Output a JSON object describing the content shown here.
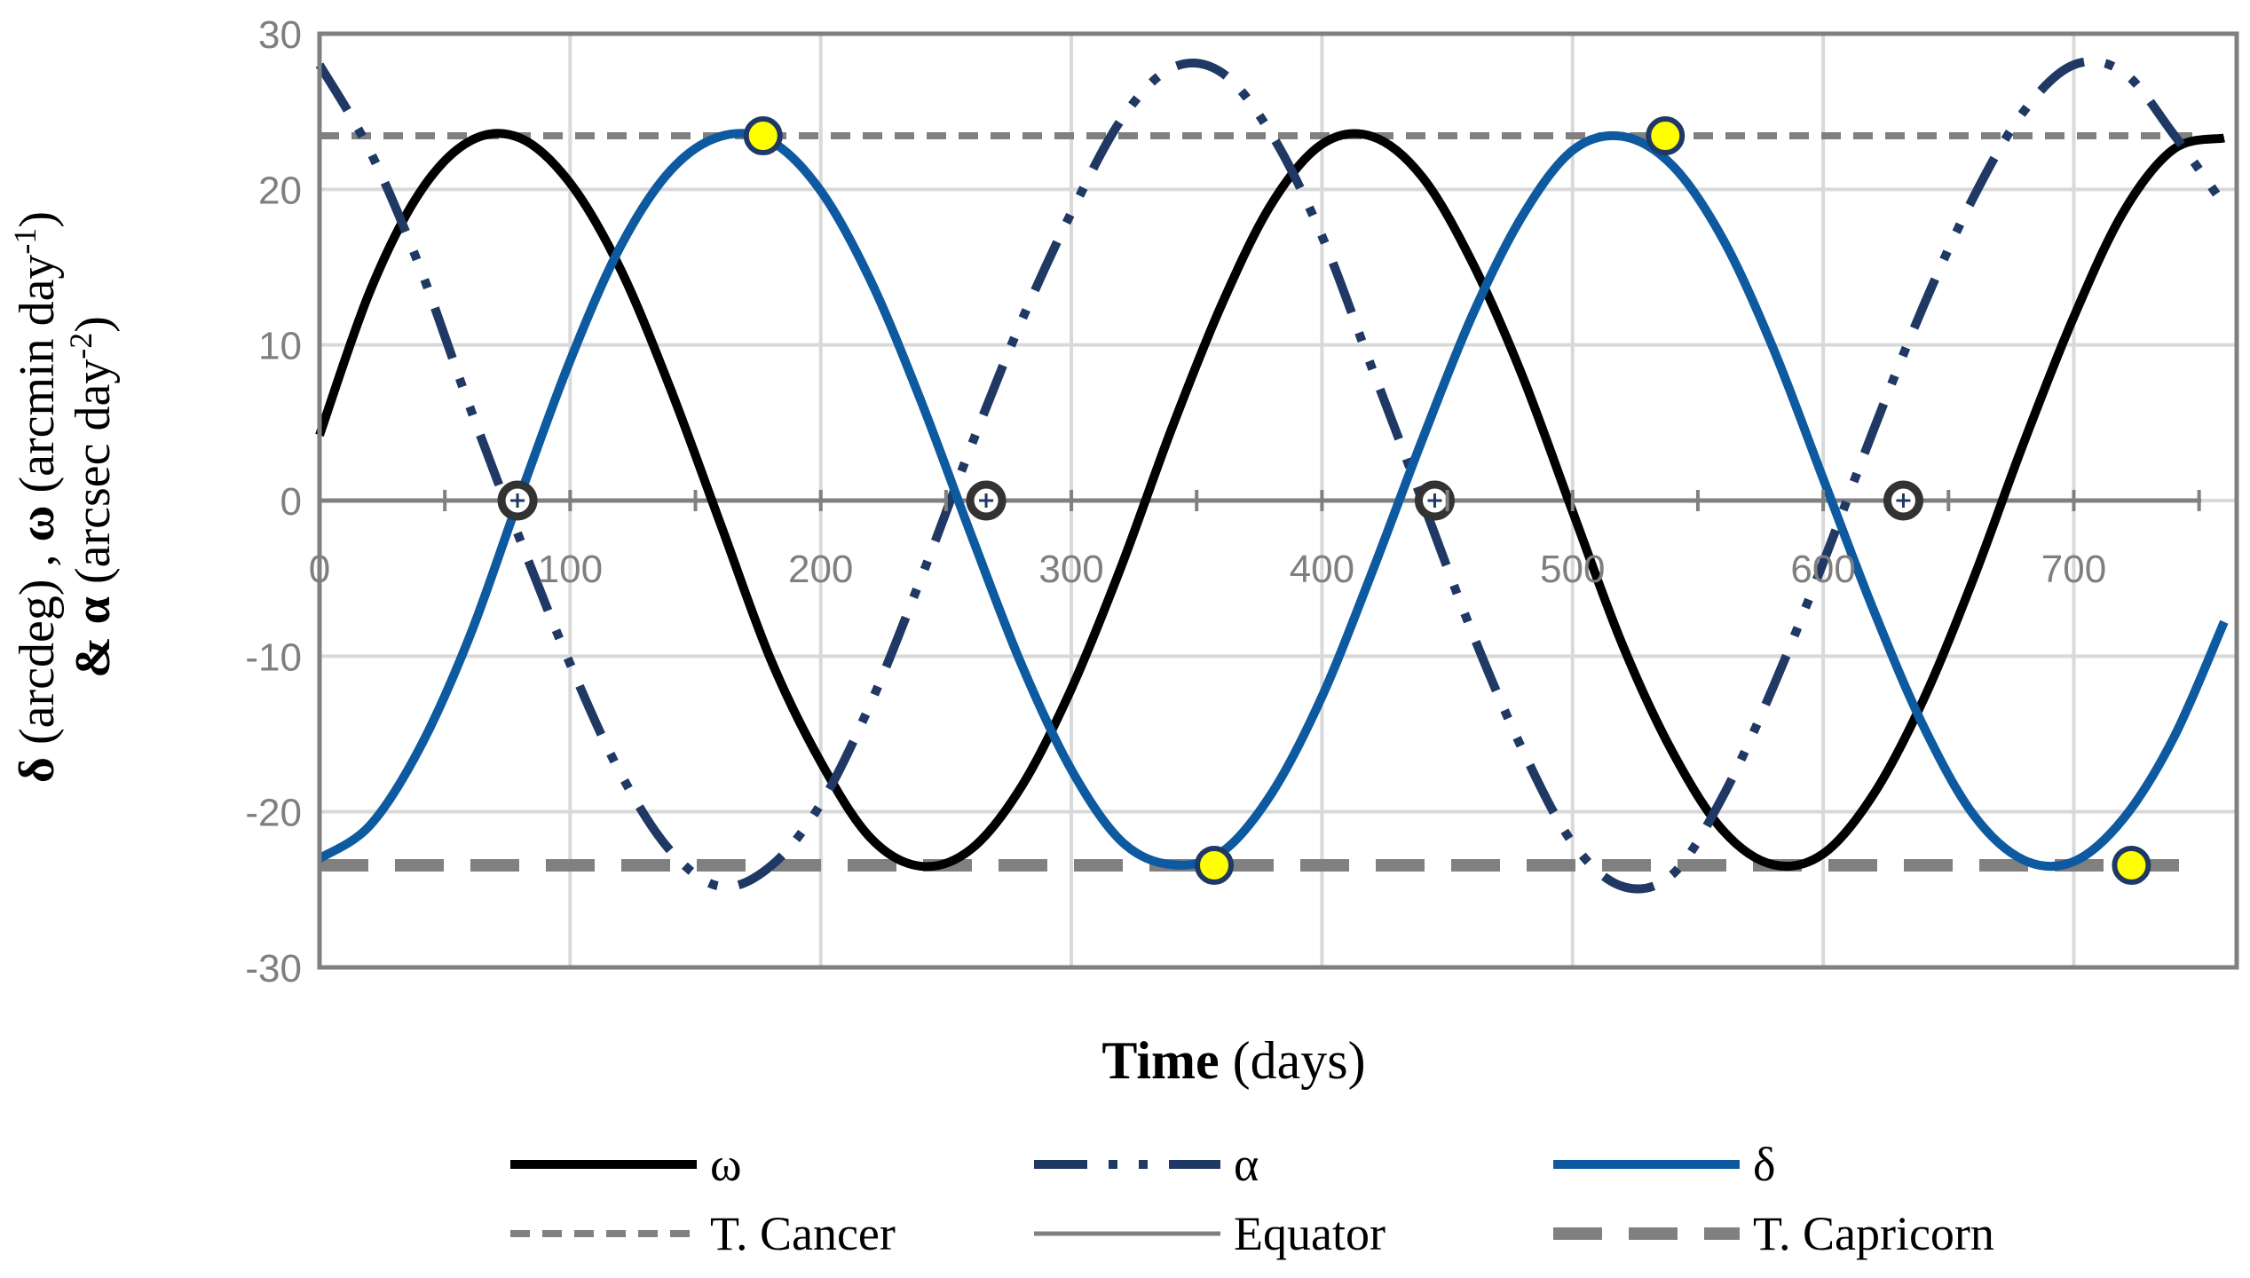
{
  "chart_data": {
    "type": "line",
    "title": "",
    "xlabel": {
      "bold": "Time",
      "rest": " (days)"
    },
    "ylabel": {
      "line1": [
        {
          "text": "δ",
          "bold": true
        },
        {
          "text": " (arcdeg) , ",
          "bold": false
        },
        {
          "text": "ω",
          "bold": true
        },
        {
          "text": " (arcmin day",
          "bold": false
        },
        {
          "text": "-1",
          "bold": false,
          "sup": true
        },
        {
          "text": ")",
          "bold": false
        }
      ],
      "line2": [
        {
          "text": "&",
          "bold": true
        },
        {
          "text": "  ",
          "bold": false
        },
        {
          "text": "α",
          "bold": true
        },
        {
          "text": " (arcsec day",
          "bold": false
        },
        {
          "text": "-2",
          "bold": false,
          "sup": true
        },
        {
          "text": ")",
          "bold": false
        }
      ]
    },
    "xlim": [
      0,
      765
    ],
    "ylim": [
      -30,
      30
    ],
    "x_ticks": [
      0,
      100,
      200,
      300,
      400,
      500,
      600,
      700
    ],
    "x_tick_labels": [
      "0",
      "100",
      "200",
      "300",
      "400",
      "500",
      "600",
      "700"
    ],
    "y_ticks": [
      -30,
      -20,
      -10,
      0,
      10,
      20,
      30
    ],
    "y_tick_labels": [
      "-30",
      "-20",
      "-10",
      "0",
      "10",
      "20",
      "30"
    ],
    "grid": true,
    "legend_position": "bottom",
    "series": [
      {
        "name": "ω",
        "color": "#000000",
        "style": "solid",
        "x": [
          0,
          20,
          40,
          60,
          80,
          100,
          120,
          140,
          160,
          180,
          200,
          220,
          240,
          260,
          280,
          300,
          320,
          340,
          360,
          380,
          400,
          420,
          440,
          460,
          480,
          500,
          520,
          540,
          560,
          580,
          600,
          620,
          640,
          660,
          680,
          700,
          720,
          740,
          760
        ],
        "y": [
          4.2,
          13.4,
          19.8,
          23.1,
          23.3,
          20.4,
          14.9,
          7.2,
          -1.5,
          -10.2,
          -16.8,
          -21.7,
          -23.5,
          -22.4,
          -18.4,
          -12.1,
          -4.2,
          4.6,
          12.6,
          19.1,
          22.9,
          23.4,
          20.8,
          15.3,
          8.0,
          -0.7,
          -9.3,
          -16.2,
          -21.2,
          -23.4,
          -22.7,
          -18.9,
          -12.8,
          -5.0,
          3.7,
          11.8,
          18.6,
          22.6,
          23.3
        ]
      },
      {
        "name": "α",
        "color": "#1f3864",
        "style": "dash-dot-dot",
        "x": [
          0,
          20,
          40,
          60,
          80,
          100,
          120,
          140,
          160,
          180,
          200,
          220,
          240,
          260,
          280,
          300,
          320,
          340,
          360,
          380,
          400,
          420,
          440,
          460,
          480,
          500,
          520,
          540,
          560,
          580,
          600,
          620,
          640,
          660,
          680,
          700,
          720,
          740,
          760
        ],
        "y": [
          28.0,
          22.5,
          15.0,
          6.0,
          -2.5,
          -10.5,
          -17.5,
          -22.5,
          -24.8,
          -23.5,
          -19.5,
          -13.0,
          -5.0,
          3.5,
          11.5,
          18.5,
          24.5,
          27.8,
          27.5,
          23.5,
          17.0,
          8.5,
          0.0,
          -8.5,
          -16.0,
          -22.0,
          -24.8,
          -24.0,
          -19.0,
          -12.0,
          -4.0,
          4.5,
          12.5,
          19.5,
          25.0,
          28.0,
          27.5,
          23.5,
          19.0
        ]
      },
      {
        "name": "δ",
        "color": "#0d5aa0",
        "style": "solid",
        "x": [
          0,
          20,
          40,
          60,
          80,
          100,
          120,
          140,
          160,
          180,
          200,
          220,
          240,
          260,
          280,
          300,
          320,
          340,
          360,
          380,
          400,
          420,
          440,
          460,
          480,
          500,
          520,
          540,
          560,
          580,
          600,
          620,
          640,
          660,
          680,
          700,
          720,
          740,
          760
        ],
        "y": [
          -23.0,
          -20.9,
          -15.9,
          -8.7,
          0.3,
          9.0,
          16.3,
          21.2,
          23.4,
          23.1,
          19.9,
          14.1,
          6.4,
          -2.2,
          -10.5,
          -17.3,
          -21.9,
          -23.4,
          -22.6,
          -18.8,
          -12.6,
          -4.6,
          3.9,
          11.9,
          18.3,
          22.5,
          23.4,
          21.5,
          16.8,
          9.8,
          1.4,
          -7.0,
          -14.5,
          -20.2,
          -23.1,
          -23.2,
          -20.4,
          -15.2,
          -7.8
        ]
      },
      {
        "name": "T. Cancer",
        "color": "#808080",
        "style": "short-dash",
        "x": [
          0,
          765
        ],
        "y": [
          23.44,
          23.44
        ]
      },
      {
        "name": "Equator",
        "color": "#808080",
        "style": "solid-thin",
        "x": [
          0,
          765
        ],
        "y": [
          0,
          0
        ]
      },
      {
        "name": "T. Capricorn",
        "color": "#808080",
        "style": "long-dash",
        "x": [
          0,
          765
        ],
        "y": [
          -23.44,
          -23.44
        ]
      }
    ],
    "markers": {
      "equinoxes": {
        "fill": "#ffffff",
        "stroke": "#333333",
        "points": [
          [
            79,
            0
          ],
          [
            266,
            0
          ],
          [
            445,
            0
          ],
          [
            632,
            0
          ]
        ]
      },
      "solstices": {
        "fill": "#ffff00",
        "stroke": "#1f3864",
        "points": [
          [
            177,
            23.44
          ],
          [
            357,
            -23.44
          ],
          [
            537,
            23.44
          ],
          [
            723,
            -23.44
          ]
        ]
      }
    }
  }
}
